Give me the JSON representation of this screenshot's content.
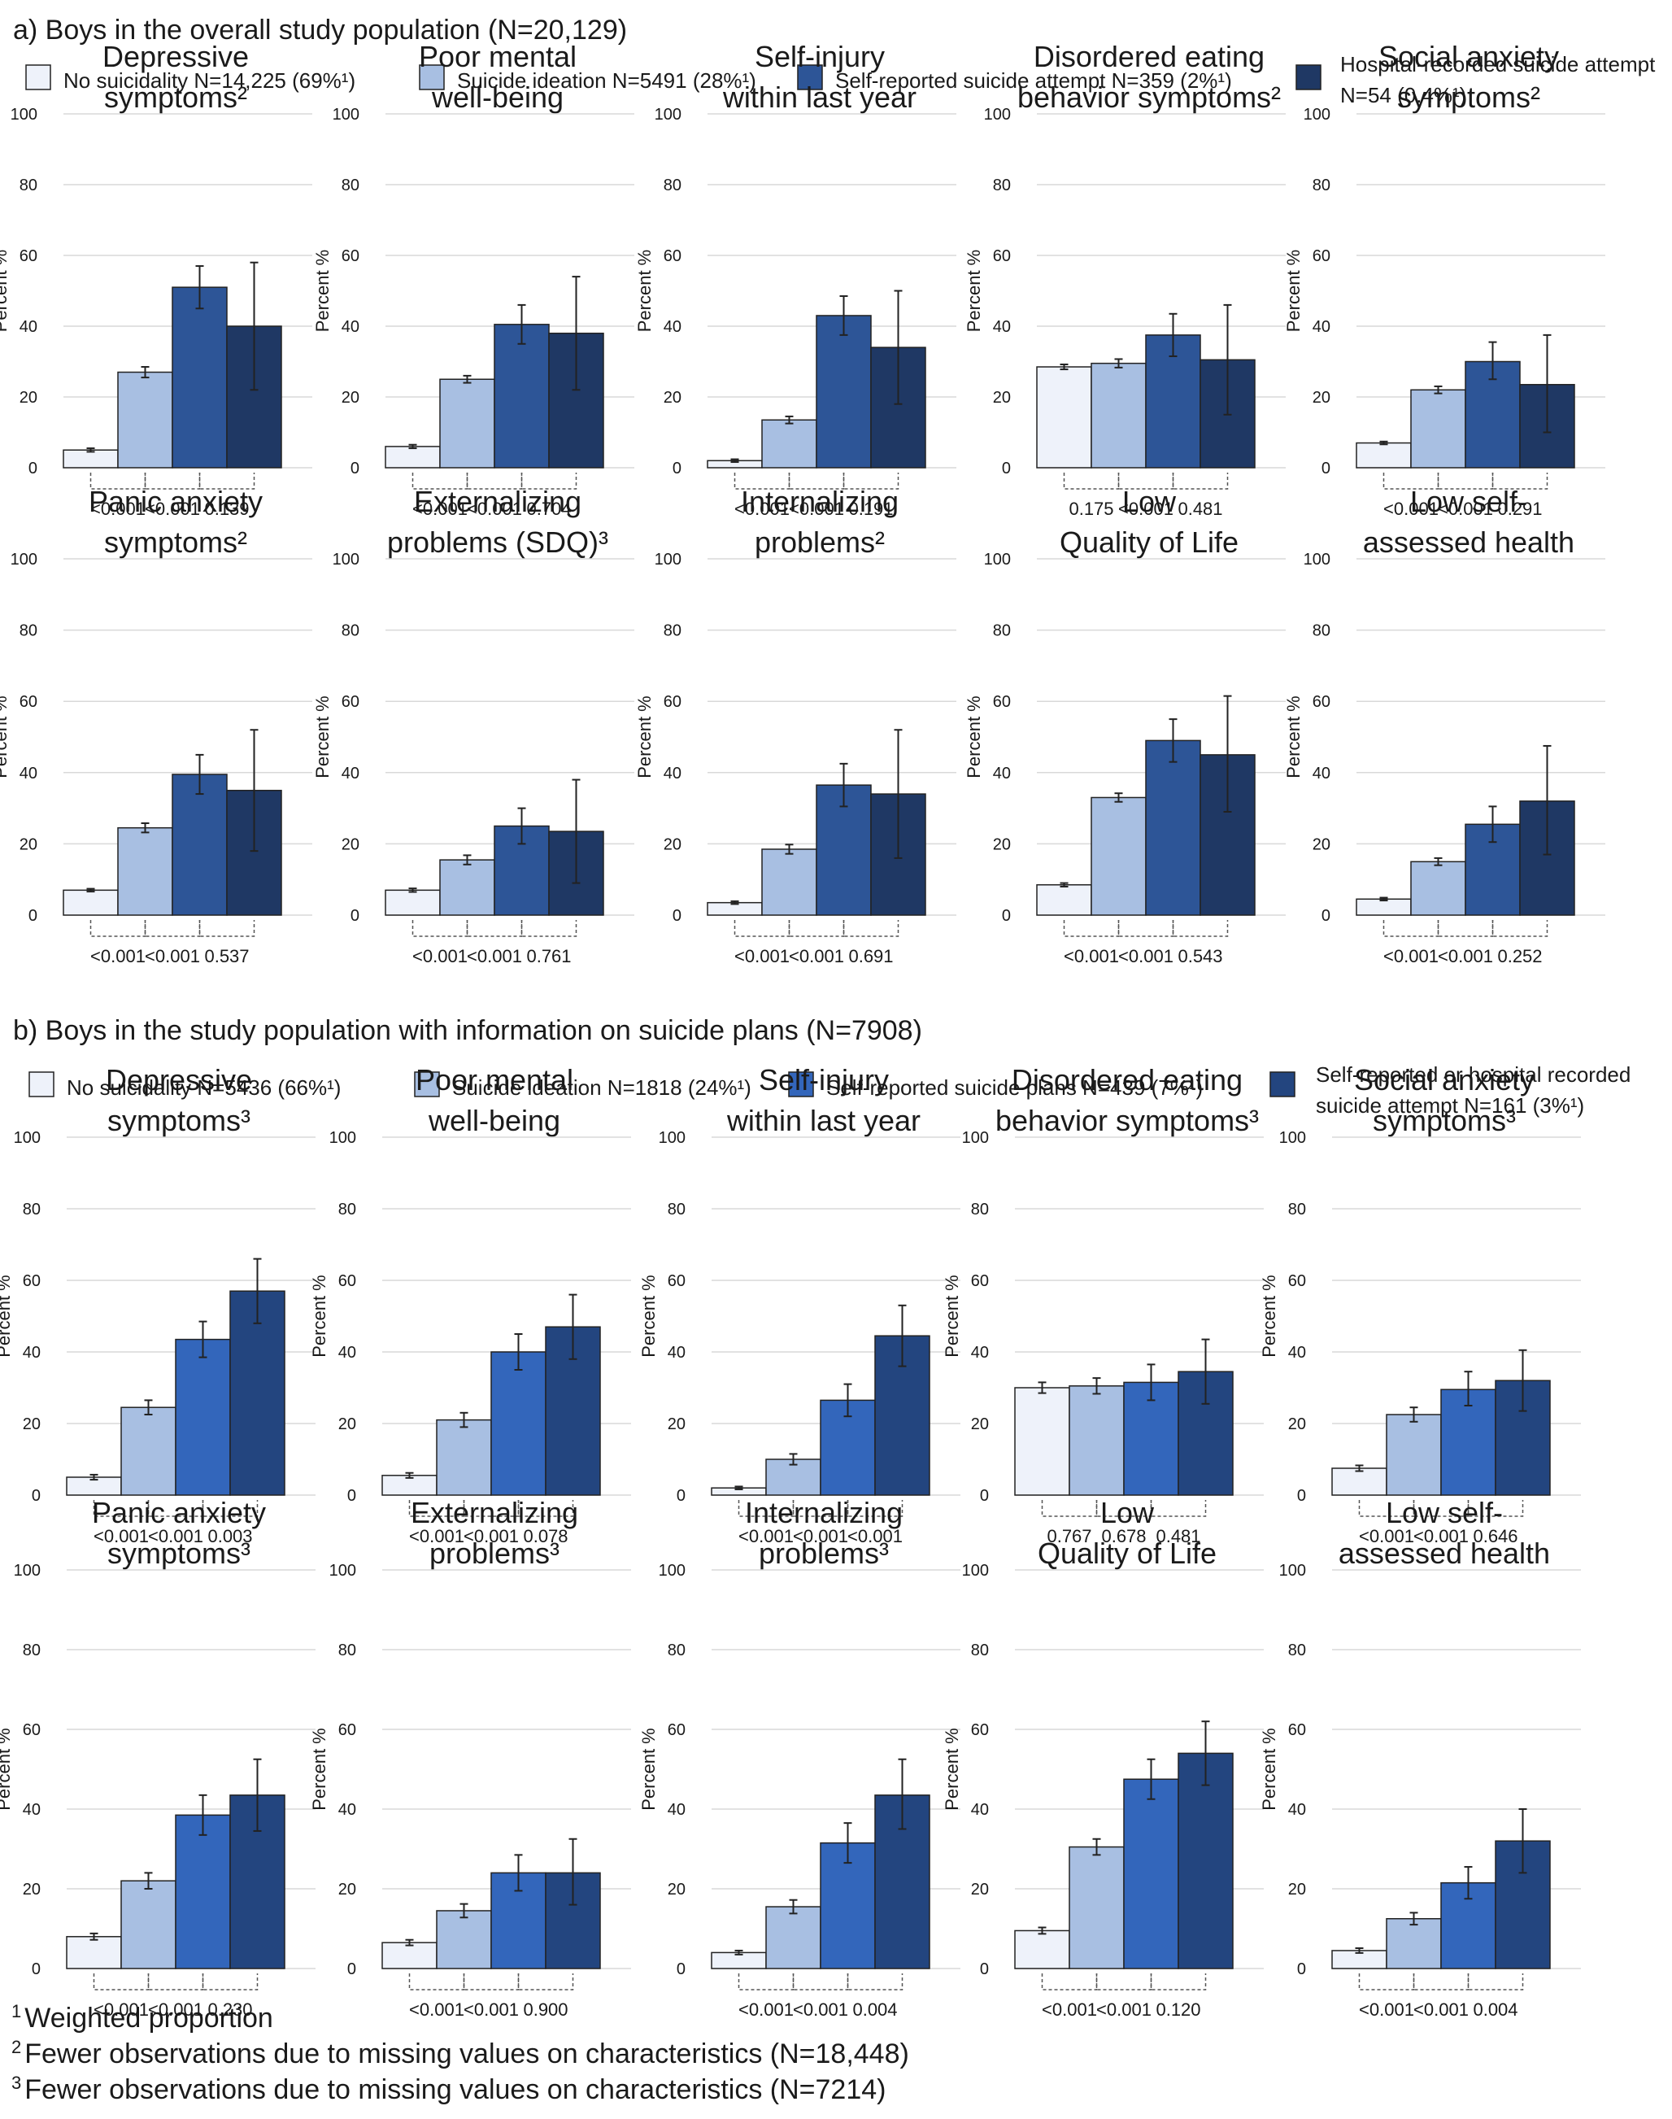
{
  "colors": {
    "no_suicidality": "#eef2fa",
    "suicide_ideation": "#a8bfe2",
    "a_attempt": "#2d5597",
    "a_hospital": "#1f3864",
    "b_plans": "#3366bb",
    "b_attempt": "#23457f",
    "edge": "#222222",
    "grid": "#d9d9d9",
    "bracket": "#555555"
  },
  "sections": [
    {
      "id": "a",
      "title": "a) Boys in the overall study population (N=20,129)",
      "legend": [
        {
          "label": "No suicidality N=14,225 (69%¹)",
          "color_key": "no_suicidality"
        },
        {
          "label": "Suicide ideation N=5491 (28%¹)",
          "color_key": "suicide_ideation"
        },
        {
          "label": "Self-reported suicide attempt N=359 (2%¹)",
          "color_key": "a_attempt"
        },
        {
          "label": "Hospital-recorded suicide attempt N=54 (0.4%¹)",
          "color_key": "a_hospital"
        }
      ]
    },
    {
      "id": "b",
      "title": "b) Boys in the study population with information on suicide plans (N=7908)",
      "legend": [
        {
          "label": "No suicidality N=5436 (66%¹)",
          "color_key": "no_suicidality"
        },
        {
          "label": "Suicide ideation N=1818 (24%¹)",
          "color_key": "suicide_ideation"
        },
        {
          "label": "Self-reported suicide plans N=439 (7%¹)",
          "color_key": "b_plans"
        },
        {
          "label": "Self-reported or hospital recorded suicide attempt N=161 (3%¹)",
          "color_key": "b_attempt"
        }
      ]
    }
  ],
  "chart_data": [
    {
      "section": "a",
      "type": "bar",
      "title": [
        "Depressive",
        "symptoms²"
      ],
      "ylabel": "Percent %",
      "ylim": [
        0,
        100
      ],
      "yticks": [
        0,
        20,
        40,
        60,
        80,
        100
      ],
      "values": [
        5,
        27,
        51,
        40
      ],
      "err_low": [
        4.5,
        25.5,
        45,
        22
      ],
      "err_high": [
        5.5,
        28.5,
        57,
        58
      ],
      "p_values": [
        "<0.001",
        "<0.001",
        "0.139"
      ]
    },
    {
      "section": "a",
      "type": "bar",
      "title": [
        "Poor mental",
        "well-being"
      ],
      "ylabel": "Percent %",
      "ylim": [
        0,
        100
      ],
      "yticks": [
        0,
        20,
        40,
        60,
        80,
        100
      ],
      "values": [
        6,
        25,
        40.5,
        38
      ],
      "err_low": [
        5.5,
        24,
        35,
        22
      ],
      "err_high": [
        6.5,
        26,
        46,
        54
      ],
      "p_values": [
        "<0.001",
        "<0.001",
        "0.704"
      ]
    },
    {
      "section": "a",
      "type": "bar",
      "title": [
        "Self-injury",
        "within last year"
      ],
      "ylabel": "Percent %",
      "ylim": [
        0,
        100
      ],
      "yticks": [
        0,
        20,
        40,
        60,
        80,
        100
      ],
      "values": [
        2,
        13.5,
        43,
        34
      ],
      "err_low": [
        1.6,
        12.5,
        37.5,
        18
      ],
      "err_high": [
        2.4,
        14.5,
        48.5,
        50
      ],
      "p_values": [
        "<0.001",
        "<0.001",
        "0.191"
      ]
    },
    {
      "section": "a",
      "type": "bar",
      "title": [
        "Disordered eating",
        "behavior symptoms²"
      ],
      "ylabel": "Percent %",
      "ylim": [
        0,
        100
      ],
      "yticks": [
        0,
        20,
        40,
        60,
        80,
        100
      ],
      "values": [
        28.5,
        29.5,
        37.5,
        30.5
      ],
      "err_low": [
        27.8,
        28.3,
        31.5,
        15
      ],
      "err_high": [
        29.2,
        30.7,
        43.5,
        46
      ],
      "p_values": [
        "0.175",
        "<0.001",
        "0.481"
      ]
    },
    {
      "section": "a",
      "type": "bar",
      "title": [
        "Social anxiety",
        "symptoms²"
      ],
      "ylabel": "Percent %",
      "ylim": [
        0,
        100
      ],
      "yticks": [
        0,
        20,
        40,
        60,
        80,
        100
      ],
      "values": [
        7,
        22,
        30,
        23.5
      ],
      "err_low": [
        6.6,
        21,
        25,
        10
      ],
      "err_high": [
        7.4,
        23,
        35.5,
        37.5
      ],
      "p_values": [
        "<0.001",
        "<0.001",
        "0.291"
      ]
    },
    {
      "section": "a",
      "type": "bar",
      "title": [
        "Panic anxiety",
        "symptoms²"
      ],
      "ylabel": "Percent %",
      "ylim": [
        0,
        100
      ],
      "yticks": [
        0,
        20,
        40,
        60,
        80,
        100
      ],
      "values": [
        7,
        24.5,
        39.5,
        35
      ],
      "err_low": [
        6.6,
        23.2,
        34,
        18
      ],
      "err_high": [
        7.4,
        25.8,
        45,
        52
      ],
      "p_values": [
        "<0.001",
        "<0.001",
        "0.537"
      ]
    },
    {
      "section": "a",
      "type": "bar",
      "title": [
        "Externalizing",
        "problems (SDQ)³"
      ],
      "ylabel": "Percent %",
      "ylim": [
        0,
        100
      ],
      "yticks": [
        0,
        20,
        40,
        60,
        80,
        100
      ],
      "values": [
        7,
        15.5,
        25,
        23.5
      ],
      "err_low": [
        6.5,
        14.2,
        20,
        9
      ],
      "err_high": [
        7.5,
        16.8,
        30,
        38
      ],
      "p_values": [
        "<0.001",
        "<0.001",
        "0.761"
      ]
    },
    {
      "section": "a",
      "type": "bar",
      "title": [
        "Internalizing",
        "problems²"
      ],
      "ylabel": "Percent %",
      "ylim": [
        0,
        100
      ],
      "yticks": [
        0,
        20,
        40,
        60,
        80,
        100
      ],
      "values": [
        3.5,
        18.5,
        36.5,
        34
      ],
      "err_low": [
        3.1,
        17.2,
        30.5,
        16
      ],
      "err_high": [
        3.9,
        19.8,
        42.5,
        52
      ],
      "p_values": [
        "<0.001",
        "<0.001",
        "0.691"
      ]
    },
    {
      "section": "a",
      "type": "bar",
      "title": [
        "Low",
        "Quality of Life"
      ],
      "ylabel": "Percent %",
      "ylim": [
        0,
        100
      ],
      "yticks": [
        0,
        20,
        40,
        60,
        80,
        100
      ],
      "values": [
        8.5,
        33,
        49,
        45
      ],
      "err_low": [
        8,
        31.8,
        43,
        29
      ],
      "err_high": [
        9,
        34.2,
        55,
        61.5
      ],
      "p_values": [
        "<0.001",
        "<0.001",
        "0.543"
      ]
    },
    {
      "section": "a",
      "type": "bar",
      "title": [
        "Low self-",
        "assessed health"
      ],
      "ylabel": "Percent %",
      "ylim": [
        0,
        100
      ],
      "yticks": [
        0,
        20,
        40,
        60,
        80,
        100
      ],
      "values": [
        4.5,
        15,
        25.5,
        32
      ],
      "err_low": [
        4.1,
        14,
        20.5,
        17
      ],
      "err_high": [
        4.9,
        16,
        30.5,
        47.5
      ],
      "p_values": [
        "<0.001",
        "<0.001",
        "0.252"
      ]
    },
    {
      "section": "b",
      "type": "bar",
      "title": [
        "Depressive",
        "symptoms³"
      ],
      "ylabel": "Percent %",
      "ylim": [
        0,
        100
      ],
      "yticks": [
        0,
        20,
        40,
        60,
        80,
        100
      ],
      "values": [
        5,
        24.5,
        43.5,
        57
      ],
      "err_low": [
        4.3,
        22.5,
        38.5,
        48
      ],
      "err_high": [
        5.7,
        26.5,
        48.5,
        66
      ],
      "p_values": [
        "<0.001",
        "<0.001",
        "0.003"
      ]
    },
    {
      "section": "b",
      "type": "bar",
      "title": [
        "Poor mental",
        "well-being"
      ],
      "ylabel": "Percent %",
      "ylim": [
        0,
        100
      ],
      "yticks": [
        0,
        20,
        40,
        60,
        80,
        100
      ],
      "values": [
        5.5,
        21,
        40,
        47
      ],
      "err_low": [
        4.8,
        19,
        35,
        38
      ],
      "err_high": [
        6.2,
        23,
        45,
        56
      ],
      "p_values": [
        "<0.001",
        "<0.001",
        "0.078"
      ]
    },
    {
      "section": "b",
      "type": "bar",
      "title": [
        "Self-injury",
        "within last year"
      ],
      "ylabel": "Percent %",
      "ylim": [
        0,
        100
      ],
      "yticks": [
        0,
        20,
        40,
        60,
        80,
        100
      ],
      "values": [
        2,
        10,
        26.5,
        44.5
      ],
      "err_low": [
        1.6,
        8.5,
        22,
        36
      ],
      "err_high": [
        2.4,
        11.5,
        31,
        53
      ],
      "p_values": [
        "<0.001",
        "<0.001",
        "<0.001"
      ]
    },
    {
      "section": "b",
      "type": "bar",
      "title": [
        "Disordered eating",
        "behavior symptoms³"
      ],
      "ylabel": "Percent %",
      "ylim": [
        0,
        100
      ],
      "yticks": [
        0,
        20,
        40,
        60,
        80,
        100
      ],
      "values": [
        30,
        30.5,
        31.5,
        34.5
      ],
      "err_low": [
        28.5,
        28.3,
        26.5,
        25.5
      ],
      "err_high": [
        31.5,
        32.7,
        36.5,
        43.5
      ],
      "p_values": [
        "0.767",
        "0.678",
        "0.481"
      ]
    },
    {
      "section": "b",
      "type": "bar",
      "title": [
        "Social anxiety",
        "symptoms³"
      ],
      "ylabel": "Percent %",
      "ylim": [
        0,
        100
      ],
      "yticks": [
        0,
        20,
        40,
        60,
        80,
        100
      ],
      "values": [
        7.5,
        22.5,
        29.5,
        32
      ],
      "err_low": [
        6.7,
        20.5,
        25,
        23.5
      ],
      "err_high": [
        8.3,
        24.5,
        34.5,
        40.5
      ],
      "p_values": [
        "<0.001",
        "<0.001",
        "0.646"
      ]
    },
    {
      "section": "b",
      "type": "bar",
      "title": [
        "Panic anxiety",
        "symptoms³"
      ],
      "ylabel": "Percent %",
      "ylim": [
        0,
        100
      ],
      "yticks": [
        0,
        20,
        40,
        60,
        80,
        100
      ],
      "values": [
        8,
        22,
        38.5,
        43.5
      ],
      "err_low": [
        7.2,
        20,
        33.5,
        34.5
      ],
      "err_high": [
        8.8,
        24,
        43.5,
        52.5
      ],
      "p_values": [
        "<0.001",
        "<0.001",
        "0.230"
      ]
    },
    {
      "section": "b",
      "type": "bar",
      "title": [
        "Externalizing",
        "problems³"
      ],
      "ylabel": "Percent %",
      "ylim": [
        0,
        100
      ],
      "yticks": [
        0,
        20,
        40,
        60,
        80,
        100
      ],
      "values": [
        6.5,
        14.5,
        24,
        24
      ],
      "err_low": [
        5.8,
        12.8,
        19.5,
        16
      ],
      "err_high": [
        7.2,
        16.2,
        28.5,
        32.5
      ],
      "p_values": [
        "<0.001",
        "<0.001",
        "0.900"
      ]
    },
    {
      "section": "b",
      "type": "bar",
      "title": [
        "Internalizing",
        "problems³"
      ],
      "ylabel": "Percent %",
      "ylim": [
        0,
        100
      ],
      "yticks": [
        0,
        20,
        40,
        60,
        80,
        100
      ],
      "values": [
        4,
        15.5,
        31.5,
        43.5
      ],
      "err_low": [
        3.5,
        13.8,
        26.5,
        35
      ],
      "err_high": [
        4.5,
        17.2,
        36.5,
        52.5
      ],
      "p_values": [
        "<0.001",
        "<0.001",
        "0.004"
      ]
    },
    {
      "section": "b",
      "type": "bar",
      "title": [
        "Low",
        "Quality of Life"
      ],
      "ylabel": "Percent %",
      "ylim": [
        0,
        100
      ],
      "yticks": [
        0,
        20,
        40,
        60,
        80,
        100
      ],
      "values": [
        9.5,
        30.5,
        47.5,
        54
      ],
      "err_low": [
        8.7,
        28.5,
        42.5,
        46
      ],
      "err_high": [
        10.3,
        32.5,
        52.5,
        62
      ],
      "p_values": [
        "<0.001",
        "<0.001",
        "0.120"
      ]
    },
    {
      "section": "b",
      "type": "bar",
      "title": [
        "Low self-",
        "assessed health"
      ],
      "ylabel": "Percent %",
      "ylim": [
        0,
        100
      ],
      "yticks": [
        0,
        20,
        40,
        60,
        80,
        100
      ],
      "values": [
        4.5,
        12.5,
        21.5,
        32
      ],
      "err_low": [
        3.9,
        11,
        17.5,
        24
      ],
      "err_high": [
        5.1,
        14,
        25.5,
        40
      ],
      "p_values": [
        "<0.001",
        "<0.001",
        "0.004"
      ]
    }
  ],
  "footnotes": [
    {
      "mark": "1",
      "text": "Weighted proportion"
    },
    {
      "mark": "2",
      "text": "Fewer observations due to missing values on characteristics (N=18,448)"
    },
    {
      "mark": "3",
      "text": "Fewer observations due to missing values on characteristics (N=7214)"
    }
  ]
}
